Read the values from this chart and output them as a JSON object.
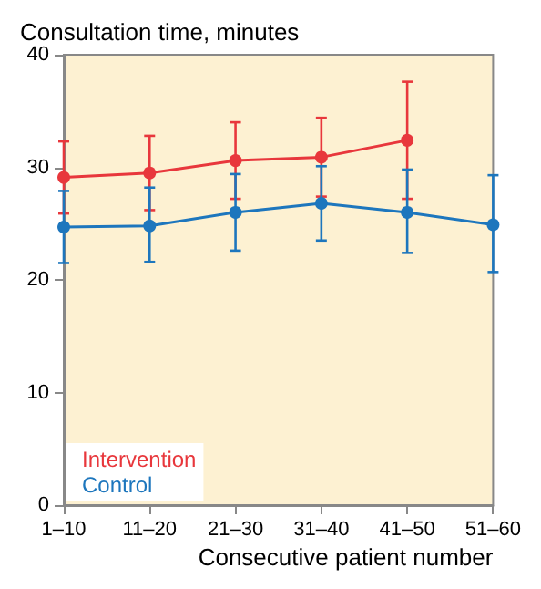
{
  "chart_data": {
    "type": "line",
    "ylabel": "Consultation time, minutes",
    "xlabel": "Consecutive patient number",
    "categories": [
      "1–10",
      "11–20",
      "21–30",
      "31–40",
      "41–50",
      "51–60"
    ],
    "series": [
      {
        "name": "Intervention",
        "color": "#e8373c",
        "values": [
          29.1,
          29.5,
          30.6,
          30.9,
          32.4,
          null
        ],
        "errors": [
          [
            25.9,
            32.3
          ],
          [
            26.2,
            32.8
          ],
          [
            27.2,
            34.0
          ],
          [
            27.4,
            34.4
          ],
          [
            27.2,
            37.6
          ],
          null
        ]
      },
      {
        "name": "Control",
        "color": "#1d76bd",
        "values": [
          24.7,
          24.8,
          26.0,
          26.8,
          26.0,
          24.9
        ],
        "errors": [
          [
            21.5,
            27.9
          ],
          [
            21.6,
            28.2
          ],
          [
            22.6,
            29.4
          ],
          [
            23.5,
            30.1
          ],
          [
            22.4,
            29.8
          ],
          [
            20.7,
            29.3
          ]
        ]
      }
    ],
    "ylim": [
      0,
      40
    ],
    "yticks": [
      0,
      10,
      20,
      30,
      40
    ],
    "grid": false,
    "legend": "bottom left",
    "marker": "circle",
    "line_style": "solid"
  }
}
